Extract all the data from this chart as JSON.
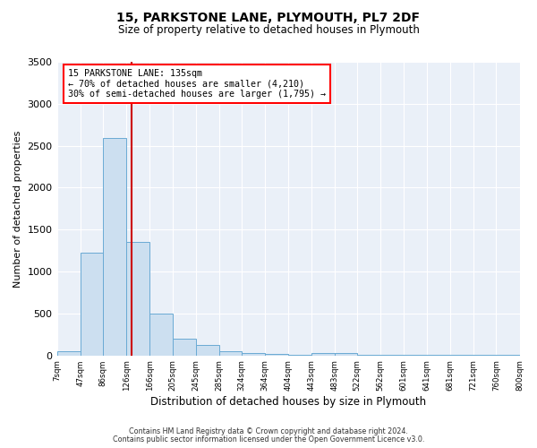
{
  "title": "15, PARKSTONE LANE, PLYMOUTH, PL7 2DF",
  "subtitle": "Size of property relative to detached houses in Plymouth",
  "xlabel": "Distribution of detached houses by size in Plymouth",
  "ylabel": "Number of detached properties",
  "bar_color": "#ccdff0",
  "bar_edge_color": "#6aaad4",
  "background_color": "#eaf0f8",
  "grid_color": "#ffffff",
  "annotation_text": "15 PARKSTONE LANE: 135sqm\n← 70% of detached houses are smaller (4,210)\n30% of semi-detached houses are larger (1,795) →",
  "vline_x": 135,
  "vline_color": "#cc0000",
  "ylim": [
    0,
    3500
  ],
  "bin_edges": [
    7,
    47,
    86,
    126,
    166,
    205,
    245,
    285,
    324,
    364,
    404,
    443,
    483,
    522,
    562,
    601,
    641,
    681,
    721,
    760,
    800
  ],
  "bar_heights": [
    50,
    1230,
    2590,
    1350,
    500,
    200,
    120,
    50,
    30,
    20,
    10,
    30,
    30,
    5,
    5,
    3,
    3,
    3,
    3,
    3
  ],
  "footer_line1": "Contains HM Land Registry data © Crown copyright and database right 2024.",
  "footer_line2": "Contains public sector information licensed under the Open Government Licence v3.0."
}
